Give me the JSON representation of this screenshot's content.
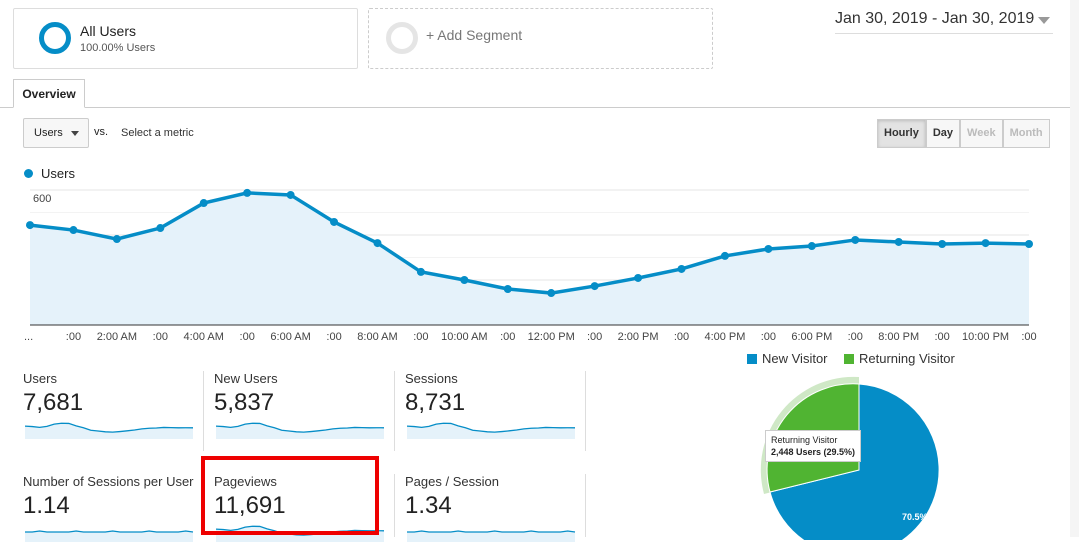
{
  "segments": {
    "all_users": "All Users",
    "all_users_sub": "100.00% Users",
    "add": "+ Add Segment"
  },
  "date_range": "Jan 30, 2019 - Jan 30, 2019",
  "tab": "Overview",
  "metric_select": "Users",
  "vs": "vs.",
  "select_metric": "Select a metric",
  "granularity": [
    "Hourly",
    "Day",
    "Week",
    "Month"
  ],
  "chart_data": {
    "type": "area",
    "series_name": "Users",
    "color": "#058dc7",
    "x_labels": [
      "...",
      ":00",
      "2:00 AM",
      ":00",
      "4:00 AM",
      ":00",
      "6:00 AM",
      ":00",
      "8:00 AM",
      ":00",
      "10:00 AM",
      ":00",
      "12:00 PM",
      ":00",
      "2:00 PM",
      ":00",
      "4:00 PM",
      ":00",
      "6:00 PM",
      ":00",
      "8:00 PM",
      ":00",
      "10:00 PM",
      ":00"
    ],
    "values": [
      444,
      422,
      382,
      431,
      542,
      587,
      578,
      458,
      364,
      236,
      200,
      160,
      142,
      173,
      209,
      249,
      307,
      338,
      351,
      378,
      369,
      360,
      364,
      360
    ],
    "y_ticks": [
      "200",
      "400",
      "600"
    ],
    "ylim": [
      0,
      650
    ]
  },
  "tiles": [
    {
      "label": "Users",
      "value": "7,681"
    },
    {
      "label": "New Users",
      "value": "5,837"
    },
    {
      "label": "Sessions",
      "value": "8,731"
    },
    {
      "label": "Number of Sessions per User",
      "value": "1.14"
    },
    {
      "label": "Pageviews",
      "value": "11,691"
    },
    {
      "label": "Pages / Session",
      "value": "1.34"
    }
  ],
  "pie": {
    "legend": [
      "New Visitor",
      "Returning Visitor"
    ],
    "colors": [
      "#058dc7",
      "#50b432"
    ],
    "values": [
      70.5,
      29.5
    ],
    "tooltip_title": "Returning Visitor",
    "tooltip_value": "2,448 Users (29.5%)",
    "label_new": "70.5%"
  }
}
